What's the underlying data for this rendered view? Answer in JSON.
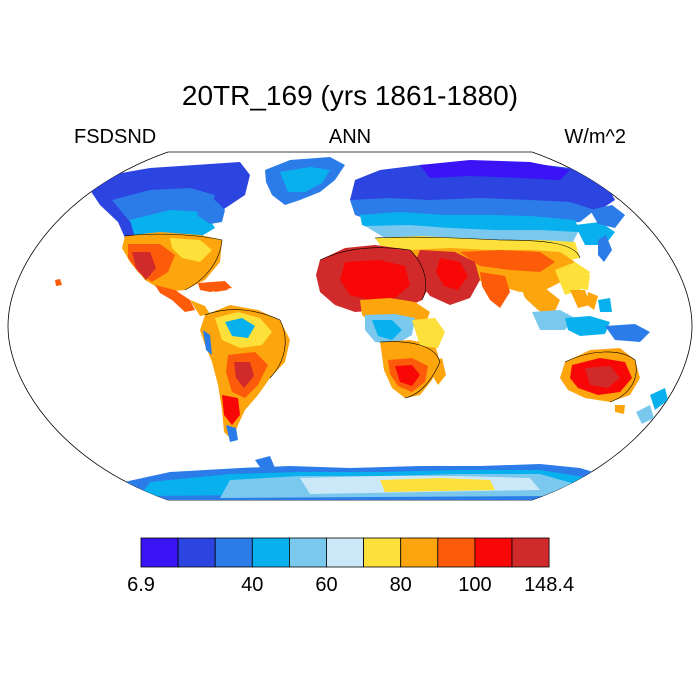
{
  "title": "20TR_169 (yrs 1861-1880)",
  "variable": "FSDSND",
  "period": "ANN",
  "units": "W/m^2",
  "colorbar": {
    "colors": [
      "#3a14f5",
      "#2c44e0",
      "#2b7ce8",
      "#08b1ee",
      "#7ac8ee",
      "#cae8f7",
      "#fde03a",
      "#fca50c",
      "#fc5b0a",
      "#f80707",
      "#d12a2a"
    ],
    "labels": [
      {
        "text": "6.9",
        "index": 0
      },
      {
        "text": "40",
        "index": 3
      },
      {
        "text": "60",
        "index": 5
      },
      {
        "text": "80",
        "index": 7
      },
      {
        "text": "100",
        "index": 9
      },
      {
        "text": "148.4",
        "index": 11
      }
    ]
  }
}
